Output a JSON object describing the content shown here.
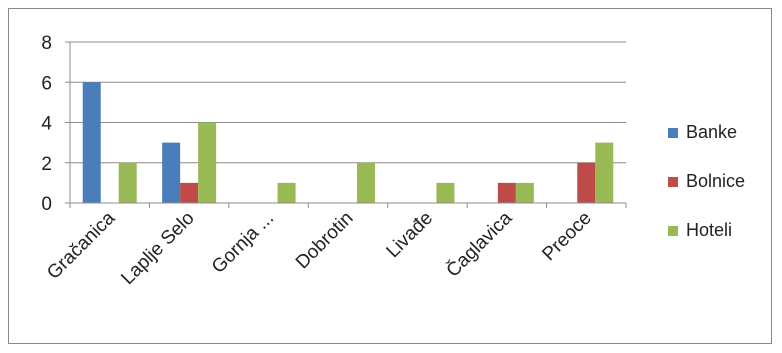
{
  "chart_data": {
    "type": "bar",
    "categories": [
      "Gračanica",
      "Laplje Selo",
      "Gornja ...",
      "Dobrotin",
      "Livađe",
      "Čaglavica",
      "Preoce"
    ],
    "series": [
      {
        "name": "Banke",
        "color": "#4a7ebb",
        "values": [
          6,
          3,
          0,
          0,
          0,
          0,
          0
        ]
      },
      {
        "name": "Bolnice",
        "color": "#be4b48",
        "values": [
          0,
          1,
          0,
          0,
          0,
          1,
          2
        ]
      },
      {
        "name": "Hoteli",
        "color": "#98b954",
        "values": [
          2,
          4,
          1,
          2,
          1,
          1,
          3
        ]
      }
    ],
    "ylim": [
      0,
      8
    ],
    "yticks": [
      0,
      2,
      4,
      6,
      8
    ],
    "grid": true,
    "legend": "right"
  }
}
